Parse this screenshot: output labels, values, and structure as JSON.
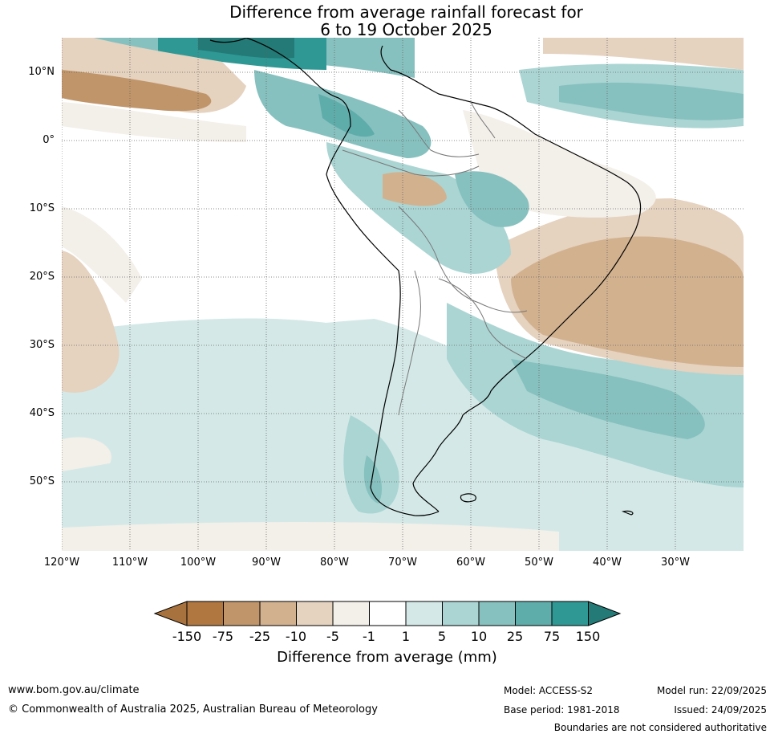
{
  "title": {
    "line1": "Difference from average rainfall forecast for",
    "line2": "6 to 19 October 2025"
  },
  "axes": {
    "lat_labels": [
      "10°N",
      "0°",
      "10°S",
      "20°S",
      "30°S",
      "40°S",
      "50°S"
    ],
    "lon_labels": [
      "120°W",
      "110°W",
      "100°W",
      "90°W",
      "80°W",
      "70°W",
      "60°W",
      "50°W",
      "40°W",
      "30°W"
    ]
  },
  "colorbar": {
    "title": "Difference from average (mm)",
    "ticks": [
      "-150",
      "-75",
      "-25",
      "-10",
      "-5",
      "-1",
      "1",
      "5",
      "10",
      "25",
      "75",
      "150"
    ],
    "colors": [
      "#a8723e",
      "#b07840",
      "#c0956a",
      "#d2b18f",
      "#e5d2bf",
      "#f3efe9",
      "#ffffff",
      "#d4e9e7",
      "#abd5d3",
      "#86c1bf",
      "#5fadab",
      "#2f9894",
      "#237a76"
    ]
  },
  "footer": {
    "website": "www.bom.gov.au/climate",
    "copyright": "© Commonwealth of Australia 2025, Australian Bureau of Meteorology",
    "model": "Model: ACCESS-S2",
    "base_period": "Base period: 1981-2018",
    "model_run": "Model run: 22/09/2025",
    "issued": "Issued: 24/09/2025",
    "disclaimer": "Boundaries are not considered authoritative"
  }
}
